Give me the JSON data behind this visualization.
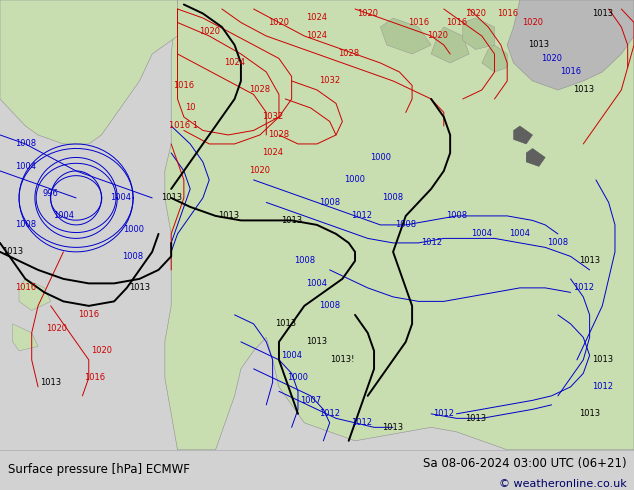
{
  "title_left": "Surface pressure [hPa] ECMWF",
  "title_right": "Sa 08-06-2024 03:00 UTC (06+21)",
  "copyright": "© weatheronline.co.uk",
  "ocean_color": "#d2d2d2",
  "land_color": "#c8ddb0",
  "land_dark_color": "#b0c898",
  "footer_bg": "#ffffff",
  "fig_width": 6.34,
  "fig_height": 4.9,
  "dpi": 100,
  "title_fontsize": 8.5,
  "copyright_fontsize": 8,
  "blue": "#0000cc",
  "red": "#cc0000",
  "black": "#000000",
  "lw_thin": 0.7,
  "lw_thick": 1.4,
  "fs": 6.0
}
